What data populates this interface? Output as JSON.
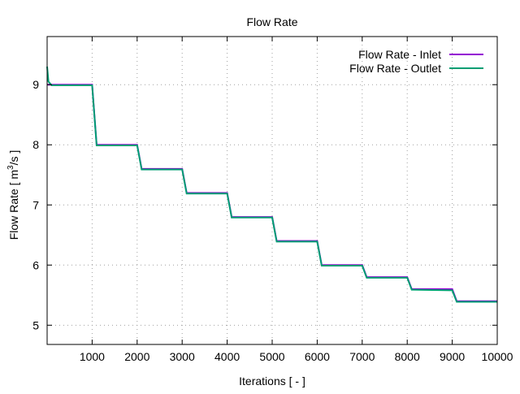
{
  "chart_data": {
    "type": "line",
    "title": "Flow Rate",
    "xlabel": "Iterations [ - ]",
    "ylabel_main": "Flow Rate [ m",
    "ylabel_sup": "3",
    "ylabel_tail": "/s ]",
    "xlim": [
      0,
      10000
    ],
    "ylim": [
      4.68,
      9.8
    ],
    "xticks": [
      1000,
      2000,
      3000,
      4000,
      5000,
      6000,
      7000,
      8000,
      9000,
      10000
    ],
    "yticks": [
      5,
      6,
      7,
      8,
      9
    ],
    "grid": true,
    "legend_position": "top-right",
    "series": [
      {
        "name": "Flow Rate - Inlet",
        "color": "#9400d3",
        "x": [
          0,
          1000,
          1100,
          2000,
          2100,
          3000,
          3100,
          4000,
          4100,
          5000,
          5100,
          6000,
          6100,
          7000,
          7100,
          8000,
          8100,
          9000,
          9100,
          10000
        ],
        "y": [
          9.0,
          9.0,
          8.0,
          8.0,
          7.6,
          7.6,
          7.2,
          7.2,
          6.8,
          6.8,
          6.4,
          6.4,
          6.0,
          6.0,
          5.8,
          5.8,
          5.6,
          5.6,
          5.4,
          5.4
        ]
      },
      {
        "name": "Flow Rate - Outlet",
        "color": "#009e73",
        "x": [
          0,
          30,
          100,
          1000,
          1100,
          2000,
          2100,
          3000,
          3100,
          4000,
          4100,
          5000,
          5100,
          6000,
          6100,
          7000,
          7100,
          8000,
          8100,
          9000,
          9100,
          10000
        ],
        "y": [
          9.3,
          9.05,
          8.99,
          8.99,
          7.99,
          7.99,
          7.59,
          7.59,
          7.19,
          7.19,
          6.79,
          6.79,
          6.39,
          6.39,
          5.99,
          5.99,
          5.79,
          5.79,
          5.59,
          5.58,
          5.39,
          5.39
        ]
      }
    ]
  }
}
